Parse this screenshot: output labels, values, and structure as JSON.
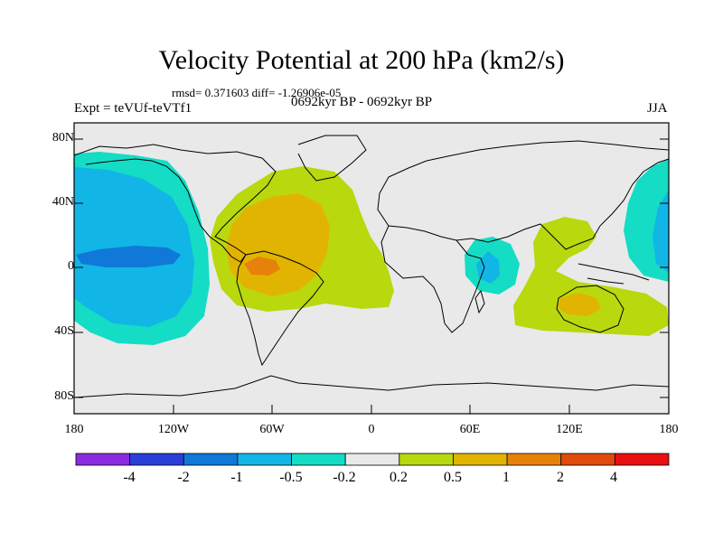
{
  "title": "Velocity Potential at 200 hPa (km2/s)",
  "stats": "rmsd= 0.371603 diff= -1.26906e-05",
  "expt": "Expt = teVUf-teVTf1",
  "period": "0692kyr BP - 0692kyr BP",
  "season": "JJA",
  "y_axis": {
    "ticks": [
      "80N",
      "40N",
      "0",
      "40S",
      "80S"
    ]
  },
  "x_axis": {
    "ticks": [
      "180",
      "120W",
      "60W",
      "0",
      "60E",
      "120E",
      "180"
    ]
  },
  "colorbar": {
    "labels": [
      "-4",
      "-2",
      "-1",
      "-0.5",
      "-0.2",
      "0.2",
      "0.5",
      "1",
      "2",
      "4"
    ],
    "colors": [
      "#8a2be2",
      "#2a3fd8",
      "#0f78d8",
      "#11b6e6",
      "#15dcc4",
      "#e9e9e9",
      "#b9d80e",
      "#e2b402",
      "#e6820a",
      "#e04a0a",
      "#e81010"
    ]
  },
  "colors": {
    "background": "#e9e9e9",
    "neg_weak": "#15dcc4",
    "neg_mid": "#11b6e6",
    "neg_strong": "#0f78d8",
    "pos_weak": "#b9d80e",
    "pos_mid": "#e2b402",
    "pos_strong": "#e6820a"
  }
}
